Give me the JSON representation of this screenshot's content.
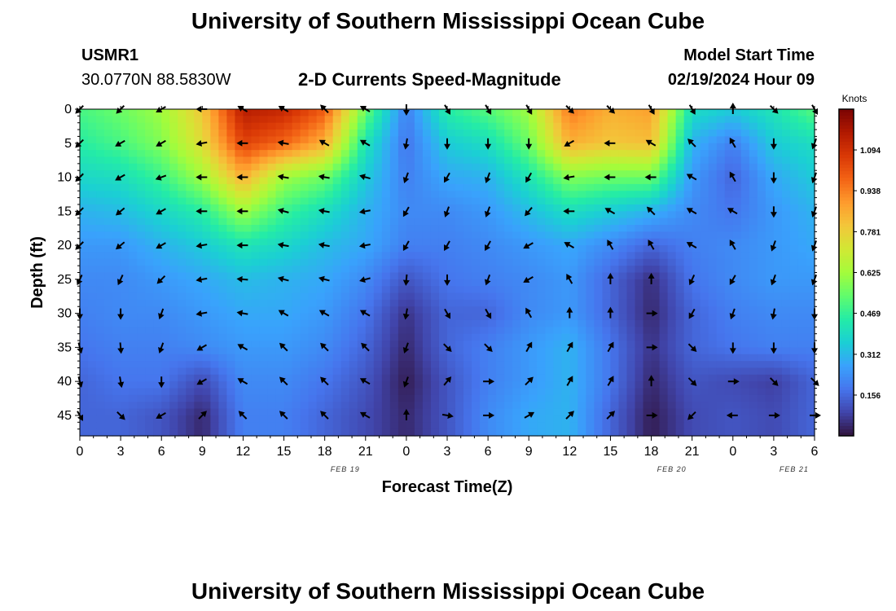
{
  "page": {
    "title": "University of Southern Mississippi Ocean Cube",
    "footer_title": "University of Southern Mississippi Ocean Cube"
  },
  "station": {
    "id": "USMR1",
    "coords": "30.0770N  88.5830W"
  },
  "model": {
    "label": "Model Start Time",
    "time": "02/19/2024 Hour 09"
  },
  "chart_data": {
    "type": "heatmap",
    "title": "2-D Currents Speed-Magnitude",
    "xlabel": "Forecast Time(Z)",
    "ylabel": "Depth (ft)",
    "x_ticks": [
      "0",
      "3",
      "6",
      "9",
      "12",
      "15",
      "18",
      "21",
      "0",
      "3",
      "6",
      "9",
      "12",
      "15",
      "18",
      "21",
      "0",
      "3",
      "6"
    ],
    "date_labels": [
      {
        "tick_index": 6.5,
        "text": "FEB 19"
      },
      {
        "tick_index": 14.5,
        "text": "FEB 20"
      },
      {
        "tick_index": 17.5,
        "text": "FEB 21"
      }
    ],
    "y_ticks": [
      "0",
      "5",
      "10",
      "15",
      "20",
      "25",
      "30",
      "35",
      "40",
      "45"
    ],
    "ylim": [
      0,
      48
    ],
    "y_inverted": true,
    "colorbar": {
      "unit": "Knots",
      "range": [
        0,
        1.25
      ],
      "tick_labels": [
        "1.094",
        "0.938",
        "0.781",
        "0.625",
        "0.469",
        "0.312",
        "0.156"
      ],
      "tick_values": [
        1.094,
        0.938,
        0.781,
        0.625,
        0.469,
        0.312,
        0.156
      ],
      "colors": [
        "#30123b",
        "#4145ab",
        "#4675ed",
        "#39a2fc",
        "#1bcfd4",
        "#24eca6",
        "#61fc6c",
        "#a4fc3b",
        "#d1e834",
        "#f3c63a",
        "#fe9b2d",
        "#f36315",
        "#d93806",
        "#b11901",
        "#7a0403"
      ]
    },
    "speed_grid_note": "Speed magnitude (knots) sampled at forecast hours 0..54 step 3 (columns) and depths 0..45 step 5 ft (rows)",
    "speed_grid": [
      [
        0.5,
        0.55,
        0.62,
        0.8,
        1.15,
        1.12,
        1.0,
        0.55,
        0.2,
        0.45,
        0.52,
        0.62,
        0.95,
        0.85,
        0.88,
        0.4,
        0.35,
        0.42,
        0.52
      ],
      [
        0.45,
        0.5,
        0.58,
        0.75,
        1.05,
        0.98,
        0.85,
        0.42,
        0.18,
        0.35,
        0.4,
        0.55,
        0.85,
        0.8,
        0.82,
        0.3,
        0.2,
        0.35,
        0.4
      ],
      [
        0.38,
        0.4,
        0.48,
        0.62,
        0.85,
        0.62,
        0.55,
        0.35,
        0.2,
        0.28,
        0.3,
        0.42,
        0.58,
        0.55,
        0.55,
        0.25,
        0.15,
        0.28,
        0.35
      ],
      [
        0.3,
        0.32,
        0.38,
        0.45,
        0.62,
        0.48,
        0.4,
        0.3,
        0.22,
        0.22,
        0.25,
        0.32,
        0.4,
        0.35,
        0.3,
        0.22,
        0.18,
        0.25,
        0.3
      ],
      [
        0.25,
        0.25,
        0.3,
        0.35,
        0.42,
        0.38,
        0.32,
        0.28,
        0.2,
        0.2,
        0.22,
        0.25,
        0.28,
        0.22,
        0.15,
        0.2,
        0.22,
        0.25,
        0.28
      ],
      [
        0.22,
        0.22,
        0.25,
        0.28,
        0.32,
        0.3,
        0.28,
        0.22,
        0.12,
        0.18,
        0.2,
        0.22,
        0.25,
        0.15,
        0.05,
        0.18,
        0.22,
        0.25,
        0.25
      ],
      [
        0.2,
        0.22,
        0.22,
        0.25,
        0.28,
        0.28,
        0.25,
        0.18,
        0.06,
        0.15,
        0.15,
        0.22,
        0.25,
        0.15,
        0.04,
        0.15,
        0.2,
        0.22,
        0.22
      ],
      [
        0.18,
        0.2,
        0.2,
        0.22,
        0.25,
        0.25,
        0.22,
        0.15,
        0.04,
        0.15,
        0.2,
        0.25,
        0.3,
        0.18,
        0.06,
        0.15,
        0.18,
        0.2,
        0.2
      ],
      [
        0.15,
        0.18,
        0.18,
        0.1,
        0.22,
        0.22,
        0.18,
        0.12,
        0.02,
        0.12,
        0.2,
        0.25,
        0.3,
        0.18,
        0.04,
        0.12,
        0.1,
        0.08,
        0.15
      ],
      [
        0.15,
        0.15,
        0.12,
        0.04,
        0.2,
        0.2,
        0.15,
        0.1,
        0.04,
        0.12,
        0.22,
        0.28,
        0.3,
        0.15,
        0.02,
        0.1,
        0.12,
        0.1,
        0.15
      ]
    ],
    "direction_note": "Arrow direction in degrees clockwise from up (north) for each grid cell",
    "direction_grid": [
      [
        225,
        225,
        240,
        270,
        300,
        300,
        315,
        300,
        180,
        150,
        150,
        150,
        135,
        135,
        150,
        150,
        0,
        135,
        150
      ],
      [
        225,
        240,
        240,
        260,
        270,
        280,
        300,
        300,
        190,
        180,
        180,
        180,
        240,
        270,
        300,
        315,
        330,
        180,
        200
      ],
      [
        225,
        240,
        250,
        270,
        270,
        280,
        280,
        285,
        200,
        210,
        200,
        210,
        260,
        270,
        270,
        300,
        330,
        180,
        200
      ],
      [
        225,
        230,
        240,
        270,
        270,
        285,
        280,
        260,
        210,
        200,
        200,
        220,
        270,
        300,
        315,
        300,
        300,
        180,
        200
      ],
      [
        225,
        230,
        240,
        260,
        270,
        280,
        280,
        260,
        210,
        210,
        210,
        240,
        300,
        330,
        330,
        300,
        330,
        200,
        200
      ],
      [
        205,
        205,
        225,
        260,
        275,
        285,
        285,
        255,
        185,
        180,
        200,
        240,
        330,
        0,
        0,
        205,
        210,
        200,
        200
      ],
      [
        180,
        180,
        200,
        260,
        280,
        300,
        300,
        300,
        190,
        150,
        150,
        330,
        0,
        0,
        90,
        210,
        200,
        190,
        180
      ],
      [
        165,
        175,
        200,
        240,
        300,
        315,
        315,
        315,
        200,
        135,
        135,
        30,
        30,
        30,
        90,
        135,
        180,
        180,
        180
      ],
      [
        165,
        170,
        180,
        240,
        300,
        315,
        315,
        300,
        200,
        40,
        90,
        45,
        30,
        30,
        0,
        135,
        90,
        135,
        135
      ],
      [
        150,
        135,
        240,
        45,
        315,
        315,
        315,
        300,
        0,
        100,
        90,
        60,
        45,
        45,
        90,
        225,
        270,
        90,
        90
      ]
    ]
  }
}
